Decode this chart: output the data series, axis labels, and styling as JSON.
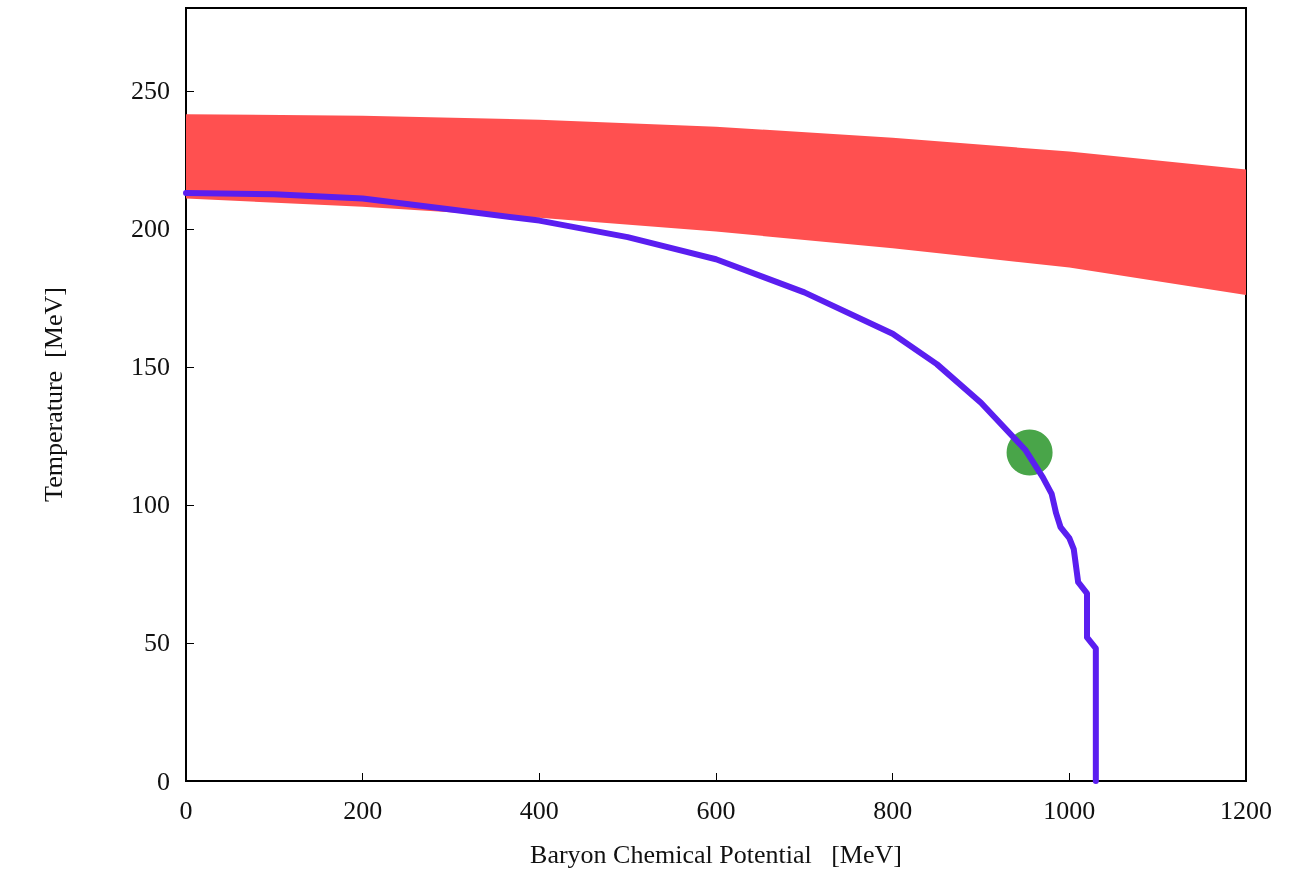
{
  "chart_data": {
    "type": "line",
    "xlabel": "Baryon Chemical Potential   [MeV]",
    "ylabel": "Temperature  [MeV]",
    "xlim": [
      0,
      1200
    ],
    "xticks": [
      0,
      200,
      400,
      600,
      800,
      1000,
      1200
    ],
    "ylim": [
      0,
      280
    ],
    "yticks": [
      0,
      50,
      100,
      150,
      200,
      250
    ],
    "grid": false,
    "series": [
      {
        "color": "#ff5050",
        "x": [
          0,
          200,
          400,
          600,
          800,
          1000,
          1200
        ],
        "values": [
          null,
          null,
          null,
          null,
          null,
          null,
          null
        ],
        "upper": [
          241.5,
          241,
          239.5,
          237,
          233,
          228,
          221.5
        ],
        "lower": [
          211,
          208,
          204,
          199,
          193,
          186,
          176
        ]
      },
      {
        "color": "#5a1ef0",
        "x": [
          0,
          100,
          200,
          300,
          400,
          500,
          600,
          700,
          800,
          850,
          900,
          950,
          970,
          980,
          985,
          990,
          1000,
          1005,
          1010,
          1020,
          1020,
          1030,
          1030,
          1030
        ],
        "values": [
          213,
          212.5,
          211,
          207,
          203,
          197,
          189,
          177,
          162,
          151,
          137,
          120,
          110,
          104,
          97,
          92,
          88,
          84,
          72,
          68,
          52,
          48,
          20,
          0
        ]
      },
      {
        "type": "scatter",
        "color": "#3fa03f",
        "x": [
          955
        ],
        "values": [
          119
        ]
      }
    ]
  }
}
